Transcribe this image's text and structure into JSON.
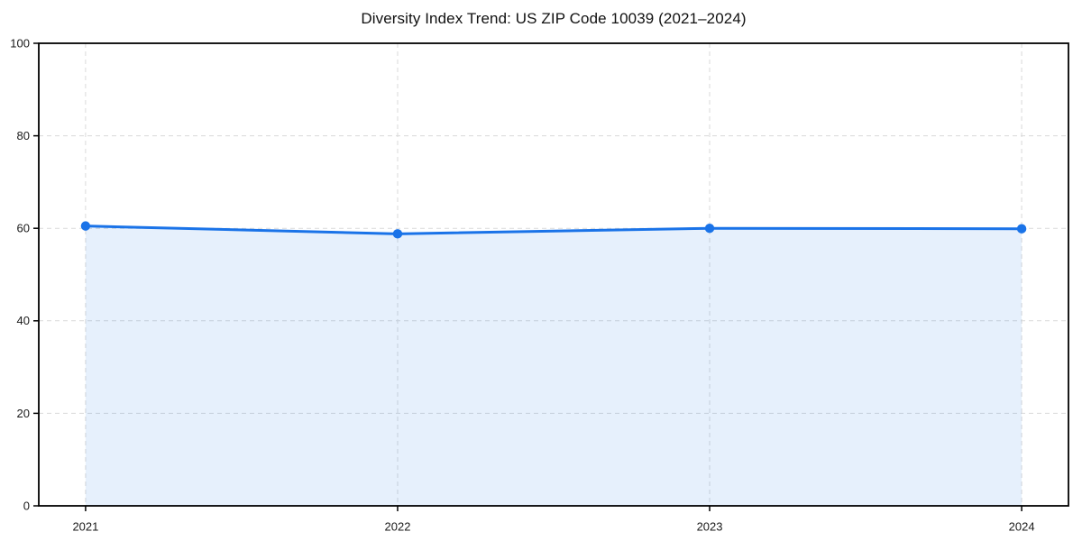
{
  "chart_data": {
    "type": "area",
    "title": "Diversity Index Trend: US ZIP Code 10039 (2021–2024)",
    "x": [
      2021,
      2022,
      2023,
      2024
    ],
    "series": [
      {
        "name": "Diversity Index",
        "values": [
          60.5,
          58.8,
          60.0,
          59.9
        ]
      }
    ],
    "xticks": [
      "2021",
      "2022",
      "2023",
      "2024"
    ],
    "yticks": [
      0,
      20,
      40,
      60,
      80,
      100
    ],
    "ylim": [
      0,
      100
    ],
    "xlabel": "",
    "ylabel": "",
    "grid": true,
    "grid_style": "dashed",
    "legend_position": "none",
    "colors": {
      "line": "#1a73e8",
      "marker": "#1a73e8",
      "fill": "rgba(26,115,232,0.11)",
      "grid": "#d9d9d9",
      "spine": "#000000",
      "text": "#1a1a1a",
      "background": "#ffffff"
    }
  }
}
